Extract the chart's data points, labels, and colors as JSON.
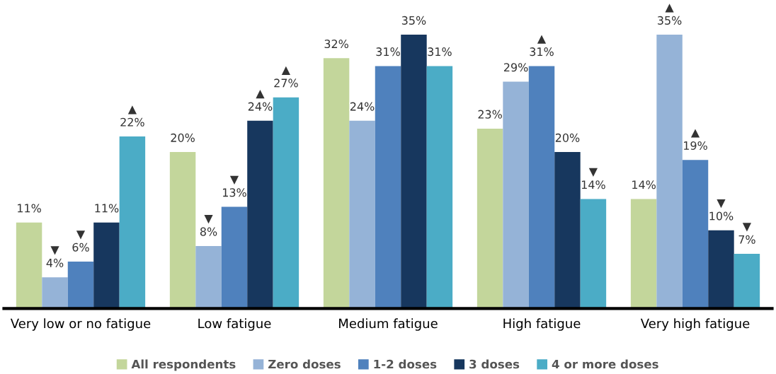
{
  "chart_data": {
    "type": "bar",
    "categories": [
      "Very low or no fatigue",
      "Low fatigue",
      "Medium fatigue",
      "High fatigue",
      "Very high fatigue"
    ],
    "series": [
      {
        "name": "All respondents",
        "color": "#c3d69b",
        "values": [
          11,
          20,
          32,
          23,
          14
        ],
        "value_labels": [
          "11%",
          "20%",
          "32%",
          "23%",
          "14%"
        ]
      },
      {
        "name": "Zero doses",
        "color": "#95b3d7",
        "values": [
          4,
          8,
          24,
          29,
          35
        ],
        "value_labels": [
          "▼\n4%",
          "▼\n8%",
          "24%",
          "29%",
          "▲\n35%"
        ]
      },
      {
        "name": "1-2 doses",
        "color": "#4f81bd",
        "values": [
          6,
          13,
          31,
          31,
          19
        ],
        "value_labels": [
          "▼\n6%",
          "▼\n13%",
          "31%",
          "▲\n31%",
          "▲\n19%"
        ]
      },
      {
        "name": "3 doses",
        "color": "#17375e",
        "values": [
          11,
          24,
          35,
          20,
          10
        ],
        "value_labels": [
          "11%",
          "▲\n24%",
          "35%",
          "20%",
          "▼\n10%"
        ]
      },
      {
        "name": "4 or more doses",
        "color": "#4bacc6",
        "values": [
          22,
          27,
          31,
          14,
          7
        ],
        "value_labels": [
          "▲\n22%",
          "▲\n27%",
          "31%",
          "▼\n14%",
          "▼\n7%"
        ]
      }
    ],
    "legend": "bottom",
    "grid": false
  }
}
